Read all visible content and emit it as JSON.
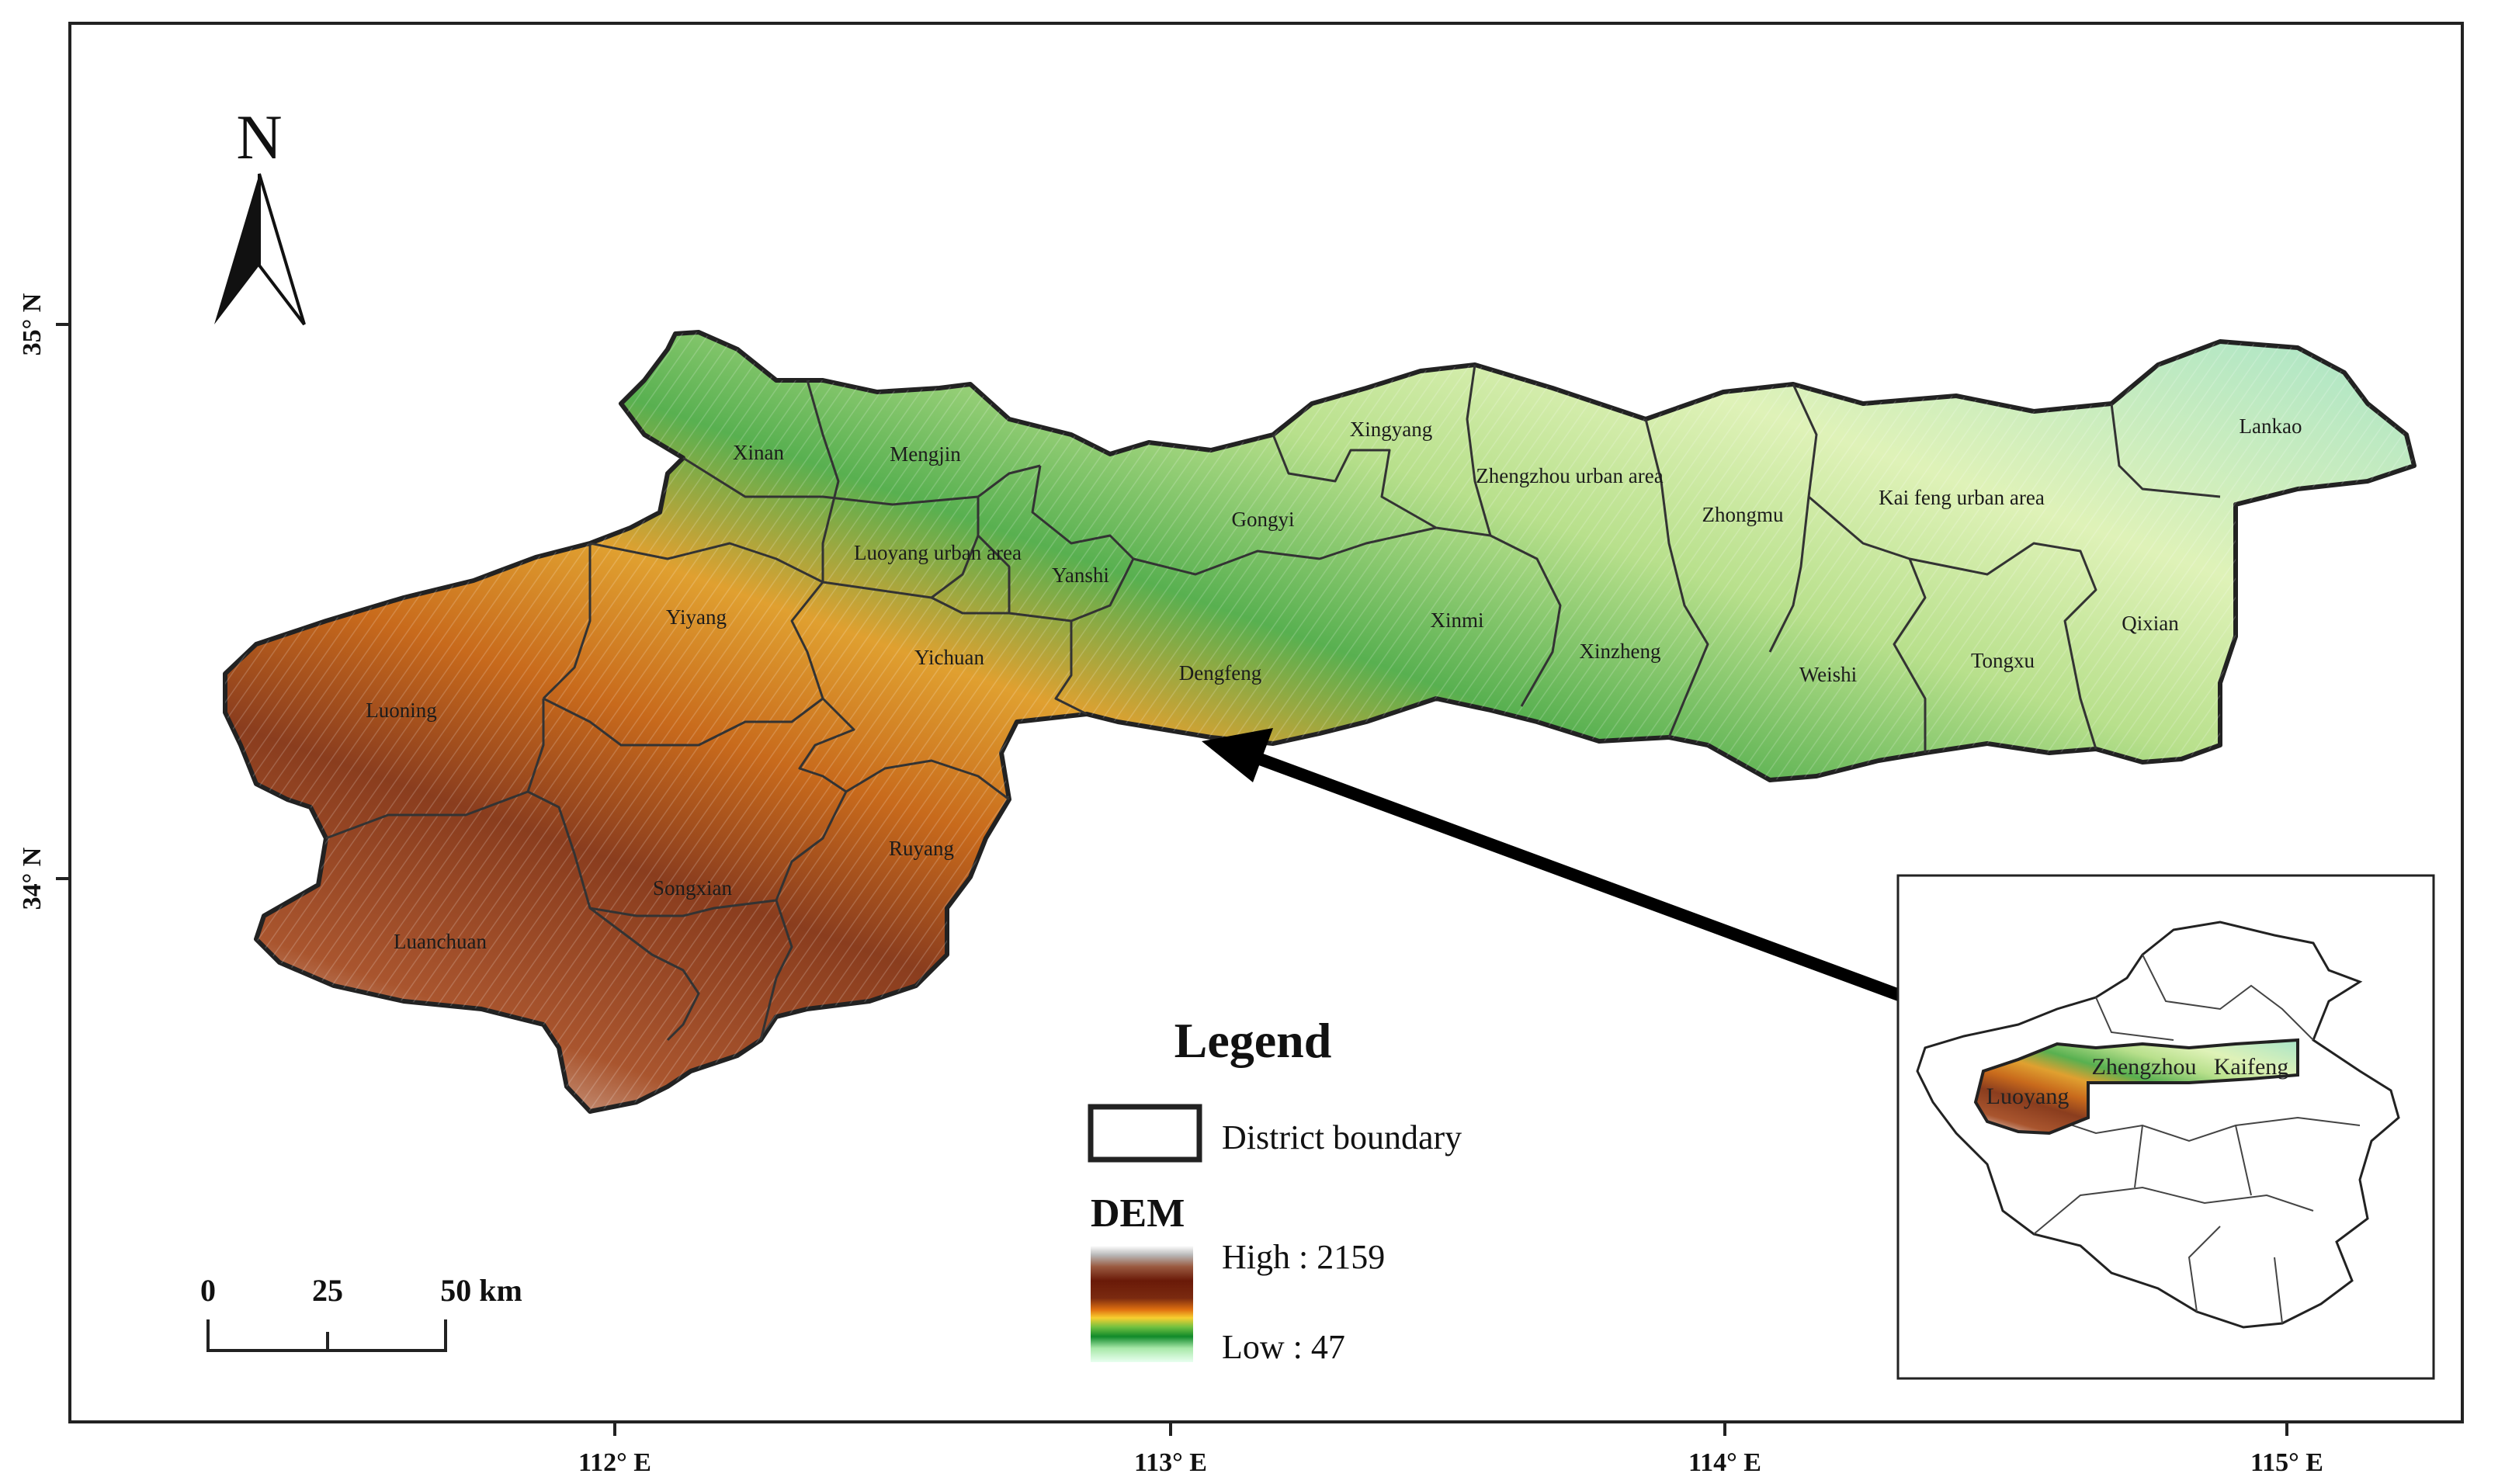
{
  "north_label": "N",
  "axes": {
    "x_ticks": [
      "112° E",
      "113° E",
      "114° E",
      "115° E"
    ],
    "y_ticks": [
      "35° N",
      "34° N"
    ]
  },
  "districts": [
    {
      "name": "Xinan",
      "zone": "high"
    },
    {
      "name": "Mengjin",
      "zone": "mid"
    },
    {
      "name": "Xingyang",
      "zone": "mid"
    },
    {
      "name": "Zhengzhou urban area",
      "zone": "low"
    },
    {
      "name": "Zhongmu",
      "zone": "low"
    },
    {
      "name": "Kai feng urban area",
      "zone": "lowest"
    },
    {
      "name": "Lankao",
      "zone": "lowest"
    },
    {
      "name": "Gongyi",
      "zone": "high"
    },
    {
      "name": "Luoyang urban area",
      "zone": "mid"
    },
    {
      "name": "Yanshi",
      "zone": "mid"
    },
    {
      "name": "Yiyang",
      "zone": "mid"
    },
    {
      "name": "Xinmi",
      "zone": "mid"
    },
    {
      "name": "Xinzheng",
      "zone": "low"
    },
    {
      "name": "Weishi",
      "zone": "lowest"
    },
    {
      "name": "Tongxu",
      "zone": "lowest"
    },
    {
      "name": "Qixian",
      "zone": "lowest"
    },
    {
      "name": "Yichuan",
      "zone": "mid"
    },
    {
      "name": "Dengfeng",
      "zone": "high"
    },
    {
      "name": "Luoning",
      "zone": "highest"
    },
    {
      "name": "Ruyang",
      "zone": "high"
    },
    {
      "name": "Songxian",
      "zone": "highest"
    },
    {
      "name": "Luanchuan",
      "zone": "highest"
    }
  ],
  "legend": {
    "title": "Legend",
    "boundary_label": "District boundary",
    "dem_title": "DEM",
    "high_label": "High : 2159",
    "low_label": "Low : 47"
  },
  "scale_bar": {
    "labels": [
      "0",
      "25",
      "50 km"
    ]
  },
  "inset": {
    "labels": [
      "Luoyang",
      "Zhengzhou",
      "Kaifeng"
    ]
  },
  "colors": {
    "ramp": [
      "#ffffff",
      "#c8c8c8",
      "#8a2e1a",
      "#5a1a0a",
      "#8b3a12",
      "#d86a10",
      "#f0a820",
      "#e8d840",
      "#3aa84a",
      "#7cd07c",
      "#c8f0c8",
      "#e8fff0"
    ],
    "lowest": "#a8e4c4",
    "low": "#d4f0a8",
    "mid": "#7cc860",
    "high": "#d07a1c",
    "highest": "#8a3d1e",
    "boundary": "#333333"
  }
}
